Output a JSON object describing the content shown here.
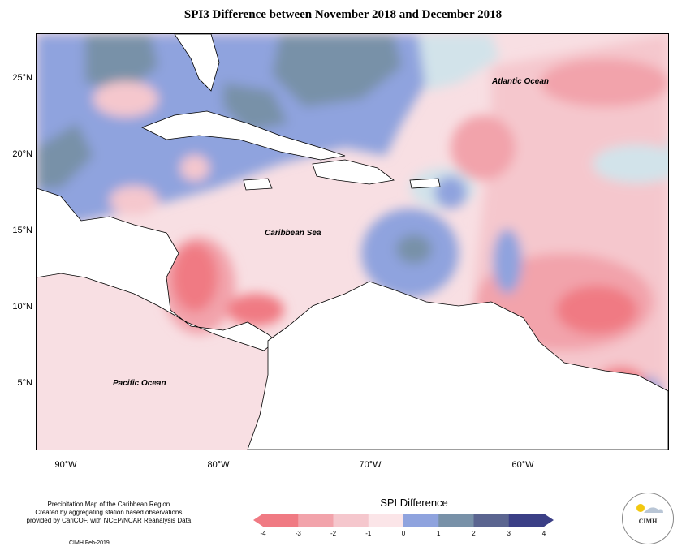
{
  "title": "SPI3 Difference between November 2018 and December 2018",
  "axes": {
    "lat_labels": [
      "25°N",
      "20°N",
      "15°N",
      "10°N",
      "5°N"
    ],
    "lon_labels": [
      "90°W",
      "80°W",
      "70°W",
      "60°W"
    ]
  },
  "labels": {
    "atlantic": "Atlantic Ocean",
    "caribbean": "Caribbean Sea",
    "pacific": "Pacific Ocean"
  },
  "notes": {
    "line1": "Precipitation Map of the Caribbean Region.",
    "line2": "Created by aggregating station based observations,",
    "line3": "provided by CariCOF, with NCEP/NCAR Reanalysis Data.",
    "credit": "CIMH Feb-2019"
  },
  "legend": {
    "title": "SPI Difference",
    "ticks": [
      "-4",
      "-3",
      "-2",
      "-1",
      "0",
      "1",
      "2",
      "3",
      "4"
    ],
    "colors": [
      "#f07a83",
      "#f2a3ab",
      "#f5c7cd",
      "#fbe5e8",
      "#d2e3ea",
      "#8fa3de",
      "#7891a8",
      "#5b6590",
      "#3b3f86"
    ]
  },
  "logo": {
    "text": "CIMH"
  }
}
